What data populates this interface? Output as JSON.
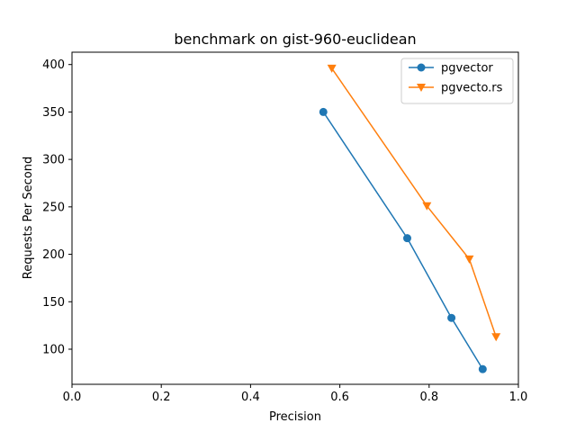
{
  "chart_data": {
    "type": "line",
    "title": "benchmark on gist-960-euclidean",
    "xlabel": "Precision",
    "ylabel": "Requests Per Second",
    "xlim": [
      0.0,
      1.0
    ],
    "ylim": [
      63,
      413
    ],
    "xticks": [
      0.0,
      0.2,
      0.4,
      0.6,
      0.8,
      1.0
    ],
    "xtick_labels": [
      "0.0",
      "0.2",
      "0.4",
      "0.6",
      "0.8",
      "1.0"
    ],
    "yticks": [
      100,
      150,
      200,
      250,
      300,
      350,
      400
    ],
    "ytick_labels": [
      "100",
      "150",
      "200",
      "250",
      "300",
      "350",
      "400"
    ],
    "grid": false,
    "legend_position": "top-right",
    "series": [
      {
        "name": "pgvector",
        "color": "#1f77b4",
        "marker": "circle",
        "x": [
          0.563,
          0.751,
          0.85,
          0.92
        ],
        "y": [
          350,
          217,
          133,
          79
        ]
      },
      {
        "name": "pgvecto.rs",
        "color": "#ff7f0e",
        "marker": "triangle-down",
        "x": [
          0.582,
          0.795,
          0.89,
          0.95
        ],
        "y": [
          396,
          251,
          195,
          113
        ]
      }
    ]
  }
}
